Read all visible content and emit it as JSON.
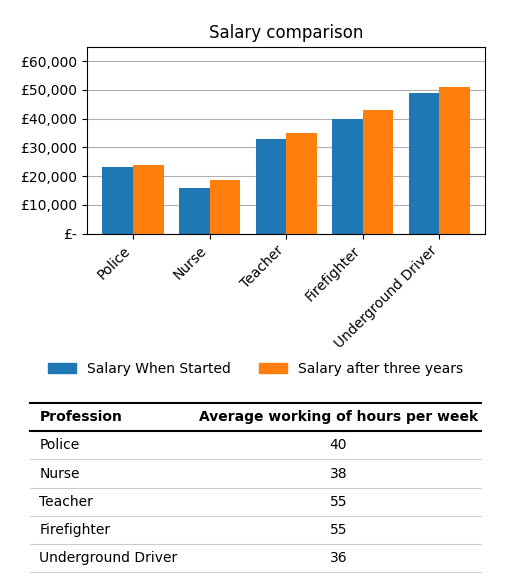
{
  "chart_data": [
    {
      "type": "bar",
      "title": "Salary comparison",
      "categories": [
        "Police",
        "Nurse",
        "Teacher",
        "Firefighter",
        "Underground Driver"
      ],
      "series": [
        {
          "name": "Salary When Started",
          "values": [
            23000,
            16000,
            33000,
            40000,
            49000
          ]
        },
        {
          "name": "Salary after three years",
          "values": [
            24000,
            18500,
            35000,
            43000,
            51000
          ]
        }
      ],
      "ylim": [
        0,
        65000
      ],
      "yticks": [
        {
          "value": 0,
          "label": "£-"
        },
        {
          "value": 10000,
          "label": "£10,000"
        },
        {
          "value": 20000,
          "label": "£20,000"
        },
        {
          "value": 30000,
          "label": "£30,000"
        },
        {
          "value": 40000,
          "label": "£40,000"
        },
        {
          "value": 50000,
          "label": "£50,000"
        },
        {
          "value": 60000,
          "label": "£60,000"
        }
      ],
      "grid": true,
      "legend": "lower center"
    },
    {
      "type": "table",
      "columns": [
        "Profession",
        "Average working of hours per week"
      ],
      "rows": [
        [
          "Police",
          40
        ],
        [
          "Nurse",
          38
        ],
        [
          "Teacher",
          55
        ],
        [
          "Firefighter",
          55
        ],
        [
          "Underground Driver",
          36
        ]
      ]
    }
  ]
}
